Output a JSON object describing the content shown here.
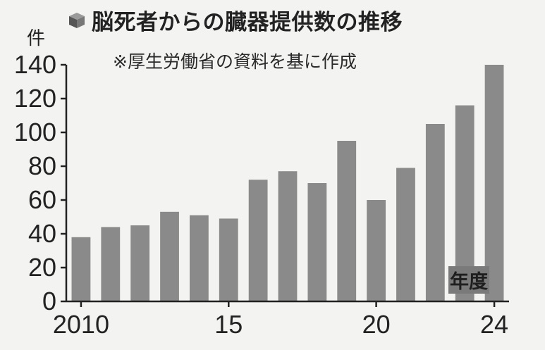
{
  "chart_data": {
    "type": "bar",
    "title": "脳死者からの臓器提供数の推移",
    "subtitle": "※厚生労働省の資料を基に作成",
    "ylabel": "件",
    "xlabel": "年度",
    "ylim": [
      0,
      140
    ],
    "yticks": [
      "0",
      "20",
      "40",
      "60",
      "80",
      "100",
      "120",
      "140"
    ],
    "categories": [
      "2010",
      "2011",
      "2012",
      "2013",
      "2014",
      "2015",
      "2016",
      "2017",
      "2018",
      "2019",
      "2020",
      "2021",
      "2022",
      "2023",
      "2024"
    ],
    "xtick_labels": [
      {
        "index": 0,
        "label": "2010"
      },
      {
        "index": 5,
        "label": "15"
      },
      {
        "index": 10,
        "label": "20"
      },
      {
        "index": 14,
        "label": "24"
      }
    ],
    "values": [
      38,
      44,
      45,
      53,
      51,
      49,
      72,
      77,
      70,
      95,
      60,
      79,
      105,
      116,
      140
    ],
    "grid": false,
    "colors": {
      "bar": "#8a8a8a",
      "axis": "#222222",
      "background": "#f3f3f1"
    }
  }
}
